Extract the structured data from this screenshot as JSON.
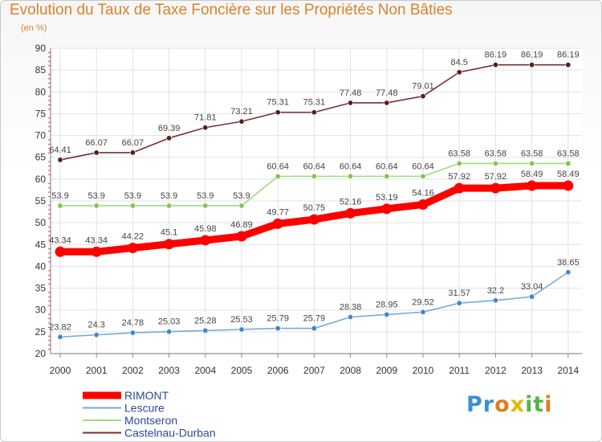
{
  "title": "Evolution du Taux de Taxe Foncière sur les Propriétés Non Bâties",
  "unit_label": "(en %)",
  "logo": {
    "text": "Proxiti",
    "letters": [
      "P",
      "r",
      "o",
      "x",
      "i",
      "t",
      "i"
    ],
    "colors": [
      "#3a8fd6",
      "#3a8fd6",
      "#e07b1f",
      "#e5b800",
      "#55b648",
      "#55b648",
      "#e07b1f"
    ]
  },
  "chart_data": {
    "type": "line",
    "x": [
      "2000",
      "2001",
      "2002",
      "2003",
      "2004",
      "2005",
      "2006",
      "2007",
      "2008",
      "2009",
      "2010",
      "2011",
      "2012",
      "2013",
      "2014"
    ],
    "ylim": [
      20,
      90
    ],
    "yticks": [
      "20",
      "25",
      "30",
      "35",
      "40",
      "45",
      "50",
      "55",
      "60",
      "65",
      "70",
      "75",
      "80",
      "85",
      "90"
    ],
    "grid": true,
    "legend_position": "bottom-left",
    "series": [
      {
        "name": "Castelnau-Durban",
        "color": "#7b2d2d",
        "marker": "#5a1c1c",
        "values": [
          64.41,
          66.07,
          66.07,
          69.39,
          71.81,
          73.21,
          75.31,
          75.31,
          77.48,
          77.48,
          79.01,
          84.5,
          86.19,
          86.19,
          86.19
        ],
        "labels": [
          "64.41",
          "66.07",
          "66.07",
          "69.39",
          "71.81",
          "73.21",
          "75.31",
          "75.31",
          "77.48",
          "77.48",
          "79.01",
          "84.5",
          "86.19",
          "86.19",
          "86.19"
        ]
      },
      {
        "name": "Montseron",
        "color": "#9fdc7d",
        "marker": "#7ec850",
        "values": [
          53.9,
          53.9,
          53.9,
          53.9,
          53.9,
          53.9,
          60.64,
          60.64,
          60.64,
          60.64,
          60.64,
          63.58,
          63.58,
          63.58,
          63.58
        ],
        "labels": [
          "53.9",
          "53.9",
          "53.9",
          "53.9",
          "53.9",
          "53.9",
          "60.64",
          "60.64",
          "60.64",
          "60.64",
          "60.64",
          "63.58",
          "63.58",
          "63.58",
          "63.58"
        ]
      },
      {
        "name": "RIMONT",
        "color": "#ff0000",
        "marker": "#ff0000",
        "values": [
          43.34,
          43.34,
          44.22,
          45.1,
          45.98,
          46.89,
          49.77,
          50.75,
          52.16,
          53.19,
          54.16,
          57.92,
          57.92,
          58.49,
          58.49
        ],
        "labels": [
          "43.34",
          "43.34",
          "44.22",
          "45.1",
          "45.98",
          "46.89",
          "49.77",
          "50.75",
          "52.16",
          "53.19",
          "54.16",
          "57.92",
          "57.92",
          "58.49",
          "58.49"
        ]
      },
      {
        "name": "Lescure",
        "color": "#7aa9d8",
        "marker": "#3f88cc",
        "values": [
          23.82,
          24.3,
          24.78,
          25.03,
          25.28,
          25.53,
          25.79,
          25.79,
          28.38,
          28.95,
          29.52,
          31.57,
          32.2,
          33.04,
          38.65
        ],
        "labels": [
          "23.82",
          "24.3",
          "24.78",
          "25.03",
          "25.28",
          "25.53",
          "25.79",
          "25.79",
          "28.38",
          "28.95",
          "29.52",
          "31.57",
          "32.2",
          "33.04",
          "38.65"
        ]
      }
    ],
    "legend": [
      "RIMONT",
      "Lescure",
      "Montseron",
      "Castelnau-Durban"
    ]
  }
}
